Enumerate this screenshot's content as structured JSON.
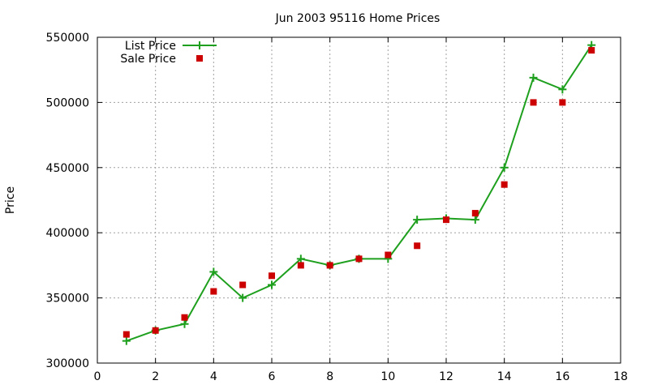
{
  "chart_data": {
    "type": "line",
    "title": "Jun 2003 95116 Home Prices",
    "xlabel": "",
    "ylabel": "Price",
    "xlim": [
      0,
      18
    ],
    "ylim": [
      300000,
      550000
    ],
    "xticks": [
      0,
      2,
      4,
      6,
      8,
      10,
      12,
      14,
      16,
      18
    ],
    "yticks": [
      300000,
      350000,
      400000,
      450000,
      500000,
      550000
    ],
    "grid": true,
    "legend_position": "top-left",
    "series": [
      {
        "name": "List Price",
        "style": "line-with-plus-markers",
        "color": "#1ea01e",
        "x": [
          1,
          2,
          3,
          4,
          5,
          6,
          7,
          8,
          9,
          10,
          11,
          12,
          13,
          14,
          15,
          16,
          17
        ],
        "values": [
          317000,
          325000,
          330000,
          370000,
          350000,
          360000,
          380000,
          375000,
          380000,
          380000,
          410000,
          411000,
          410000,
          450000,
          519000,
          510000,
          544000
        ]
      },
      {
        "name": "Sale Price",
        "style": "square-markers",
        "color": "#cc0000",
        "x": [
          1,
          2,
          3,
          4,
          5,
          6,
          7,
          8,
          9,
          10,
          11,
          12,
          13,
          14,
          15,
          16,
          17
        ],
        "values": [
          322000,
          325000,
          335000,
          355000,
          360000,
          367000,
          375000,
          375000,
          380000,
          383000,
          390000,
          410000,
          415000,
          437000,
          500000,
          500000,
          540000
        ]
      }
    ]
  }
}
